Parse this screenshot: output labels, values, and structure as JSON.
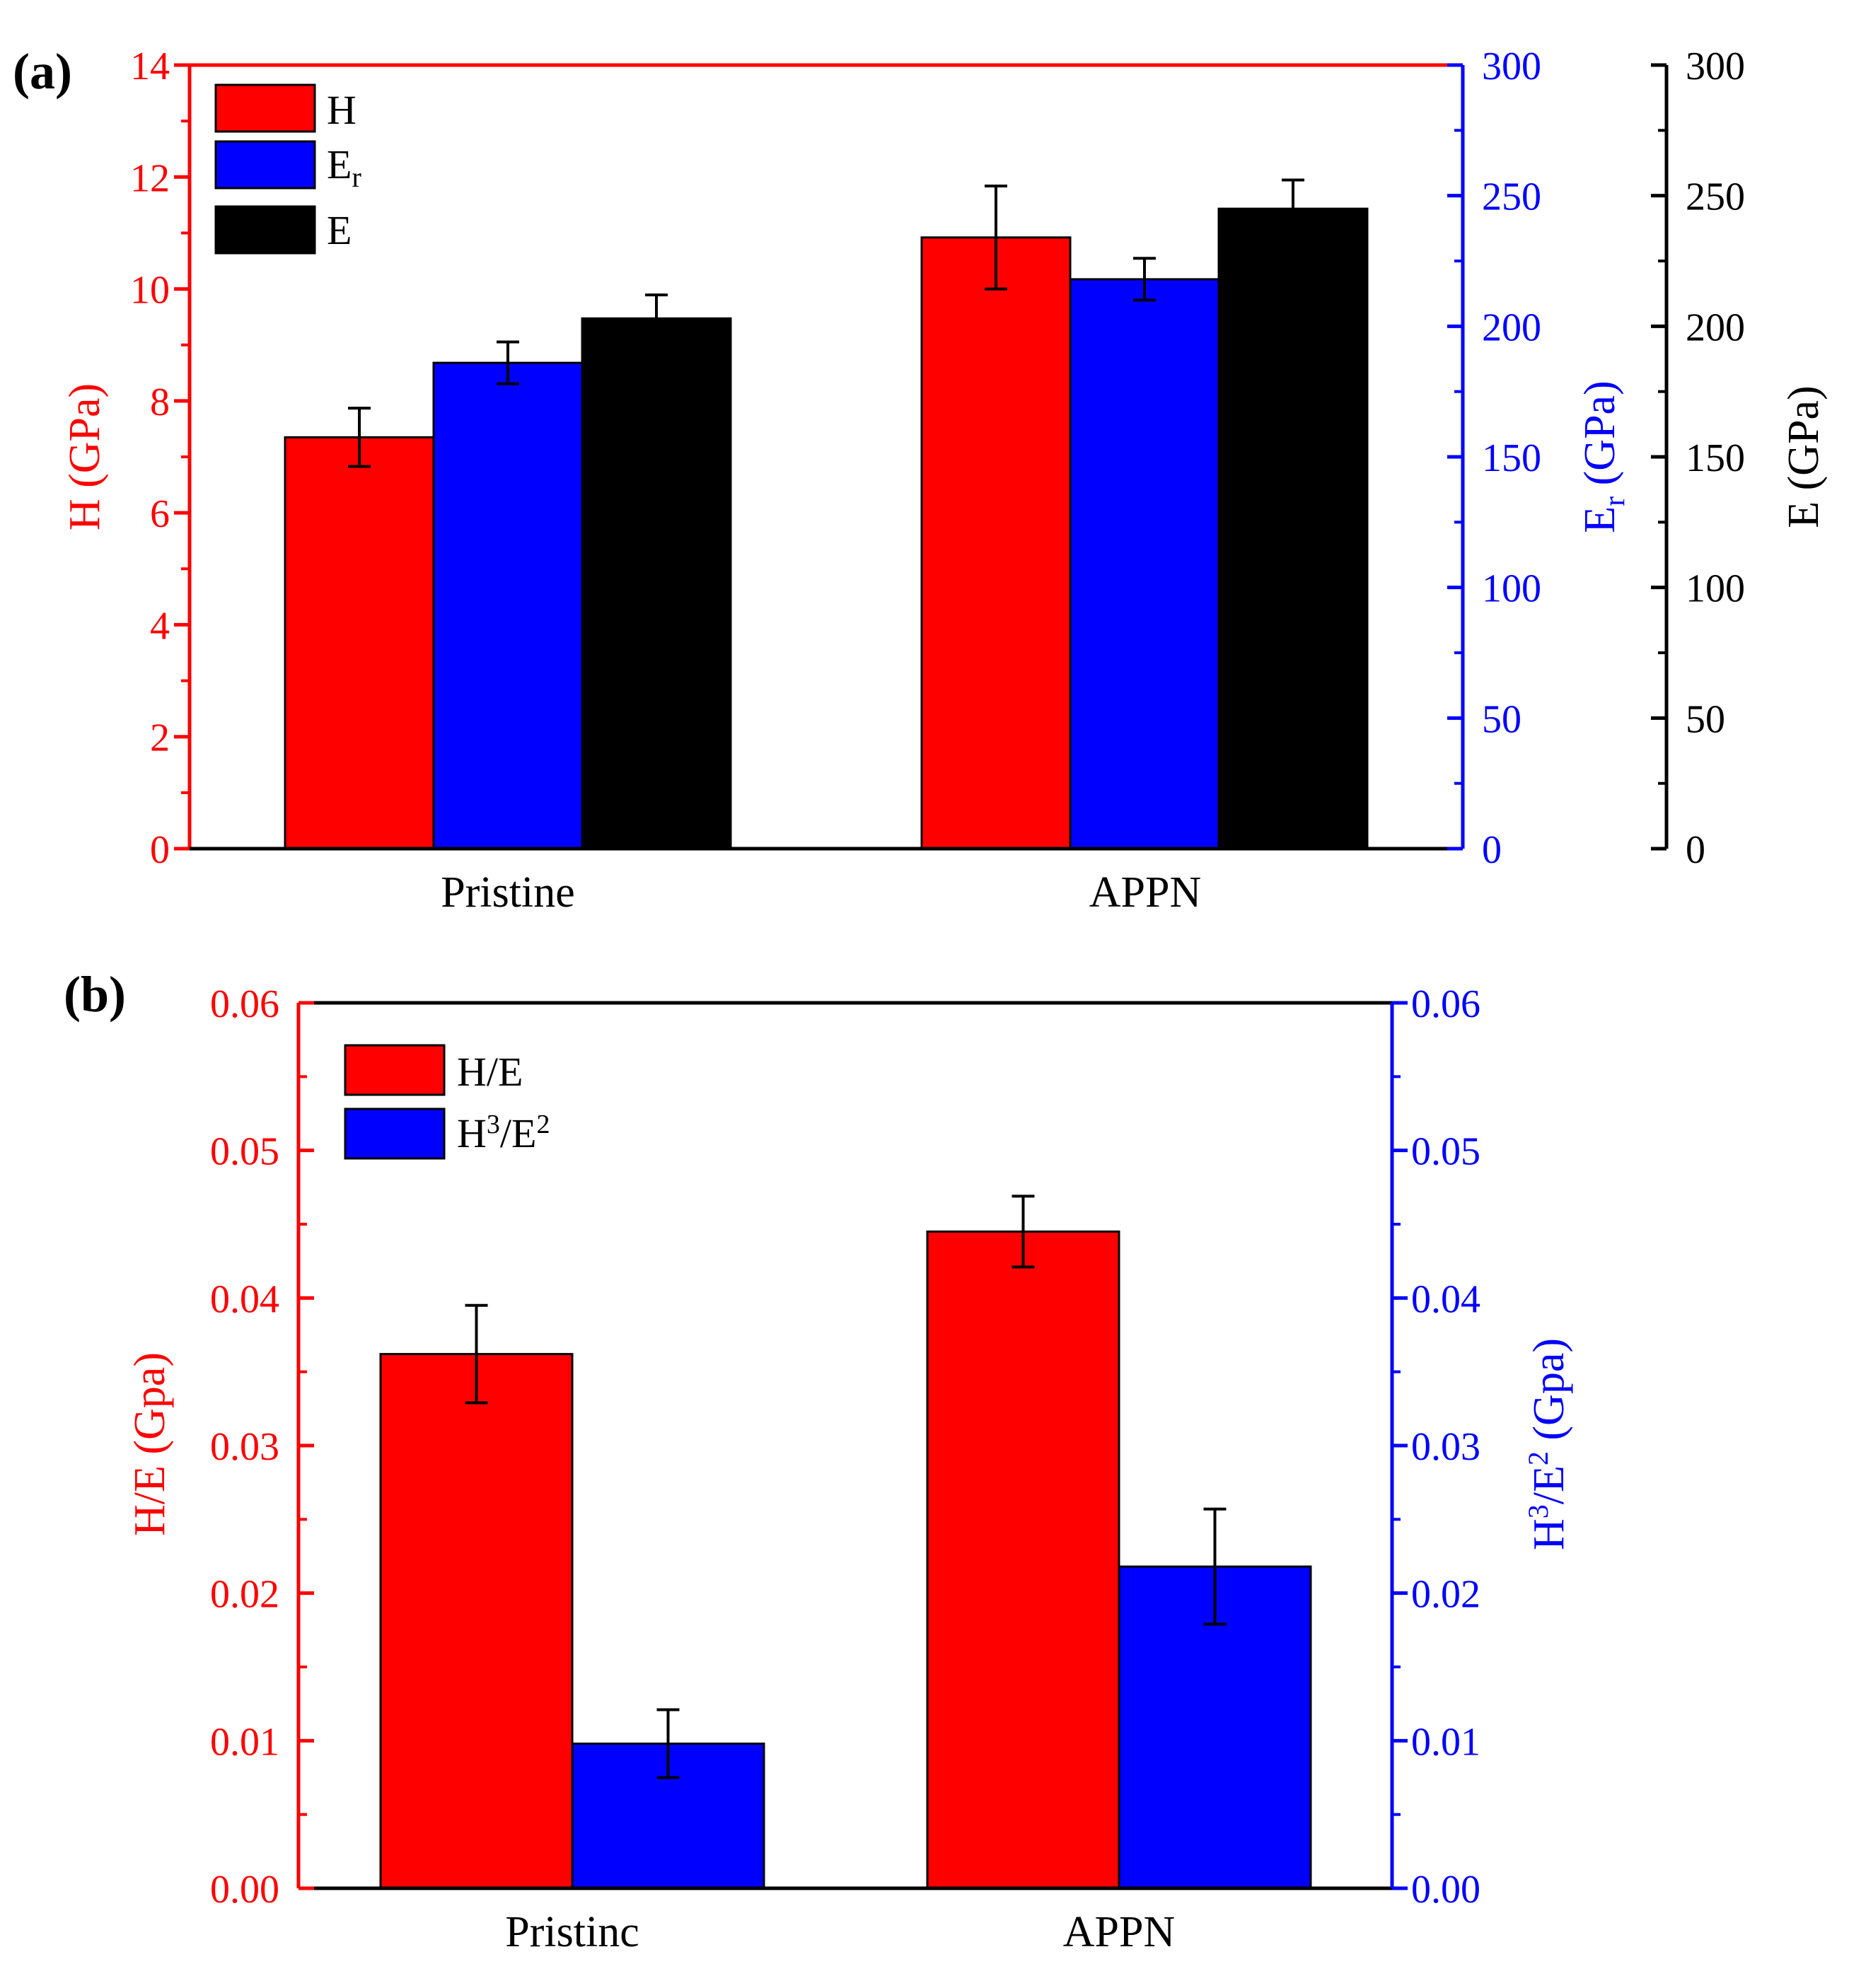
{
  "colors": {
    "red": "#ff0000",
    "blue": "#0000ff",
    "black": "#000000"
  },
  "chart_data": [
    {
      "panel_label": "(a)",
      "type": "bar",
      "categories": [
        "Pristine",
        "APPN"
      ],
      "series": [
        {
          "name": "H",
          "axis": "left",
          "color": "#ff0000",
          "values": [
            7.35,
            10.92
          ],
          "errors": [
            0.52,
            0.92
          ]
        },
        {
          "name": "Er",
          "axis": "right1",
          "color": "#0000ff",
          "values": [
            186,
            218
          ],
          "errors": [
            8,
            8
          ]
        },
        {
          "name": "E",
          "axis": "right2",
          "color": "#000000",
          "values": [
            203,
            245
          ],
          "errors": [
            9,
            11
          ]
        }
      ],
      "legend": [
        {
          "text": "H",
          "sub": "",
          "color": "#ff0000"
        },
        {
          "text": "E",
          "sub": "r",
          "color": "#0000ff"
        },
        {
          "text": "E",
          "sub": "",
          "color": "#000000"
        }
      ],
      "axes": {
        "left": {
          "label": "H (GPa)",
          "color": "#ff0000",
          "min": 0,
          "max": 14,
          "ticks": [
            "0",
            "2",
            "4",
            "6",
            "8",
            "10",
            "12",
            "14"
          ]
        },
        "right1": {
          "label_main": "E",
          "label_sub": "r",
          "label_tail": " (GPa)",
          "color": "#0000ff",
          "min": 0,
          "max": 300,
          "ticks": [
            "0",
            "50",
            "100",
            "150",
            "200",
            "250",
            "300"
          ]
        },
        "right2": {
          "label": "E (GPa)",
          "color": "#000000",
          "min": 0,
          "max": 300,
          "ticks": [
            "0",
            "50",
            "100",
            "150",
            "200",
            "250",
            "300"
          ]
        }
      }
    },
    {
      "panel_label": "(b)",
      "type": "bar",
      "categories": [
        "Pristinc",
        "APPN"
      ],
      "series": [
        {
          "name": "H/E",
          "axis": "left",
          "color": "#ff0000",
          "values": [
            0.0362,
            0.0445
          ],
          "errors": [
            0.0033,
            0.0024
          ]
        },
        {
          "name": "H3/E2",
          "axis": "right",
          "color": "#0000ff",
          "values": [
            0.0098,
            0.0218
          ],
          "errors": [
            0.0023,
            0.0039
          ]
        }
      ],
      "legend": [
        {
          "text": "H/E",
          "color": "#ff0000"
        },
        {
          "text": "H",
          "sup1": "3",
          "mid": "/E",
          "sup2": "2",
          "color": "#0000ff"
        }
      ],
      "axes": {
        "left": {
          "label": "H/E (Gpa)",
          "color": "#ff0000",
          "min": 0,
          "max": 0.06,
          "ticks": [
            "0.00",
            "0.01",
            "0.02",
            "0.03",
            "0.04",
            "0.05",
            "0.06"
          ]
        },
        "right": {
          "label_a": "H",
          "label_sup1": "3",
          "label_b": "/E",
          "label_sup2": "2",
          "label_c": " (Gpa)",
          "color": "#0000ff",
          "min": 0,
          "max": 0.06,
          "ticks": [
            "0.00",
            "0.01",
            "0.02",
            "0.03",
            "0.04",
            "0.05",
            "0.06"
          ]
        }
      }
    }
  ]
}
